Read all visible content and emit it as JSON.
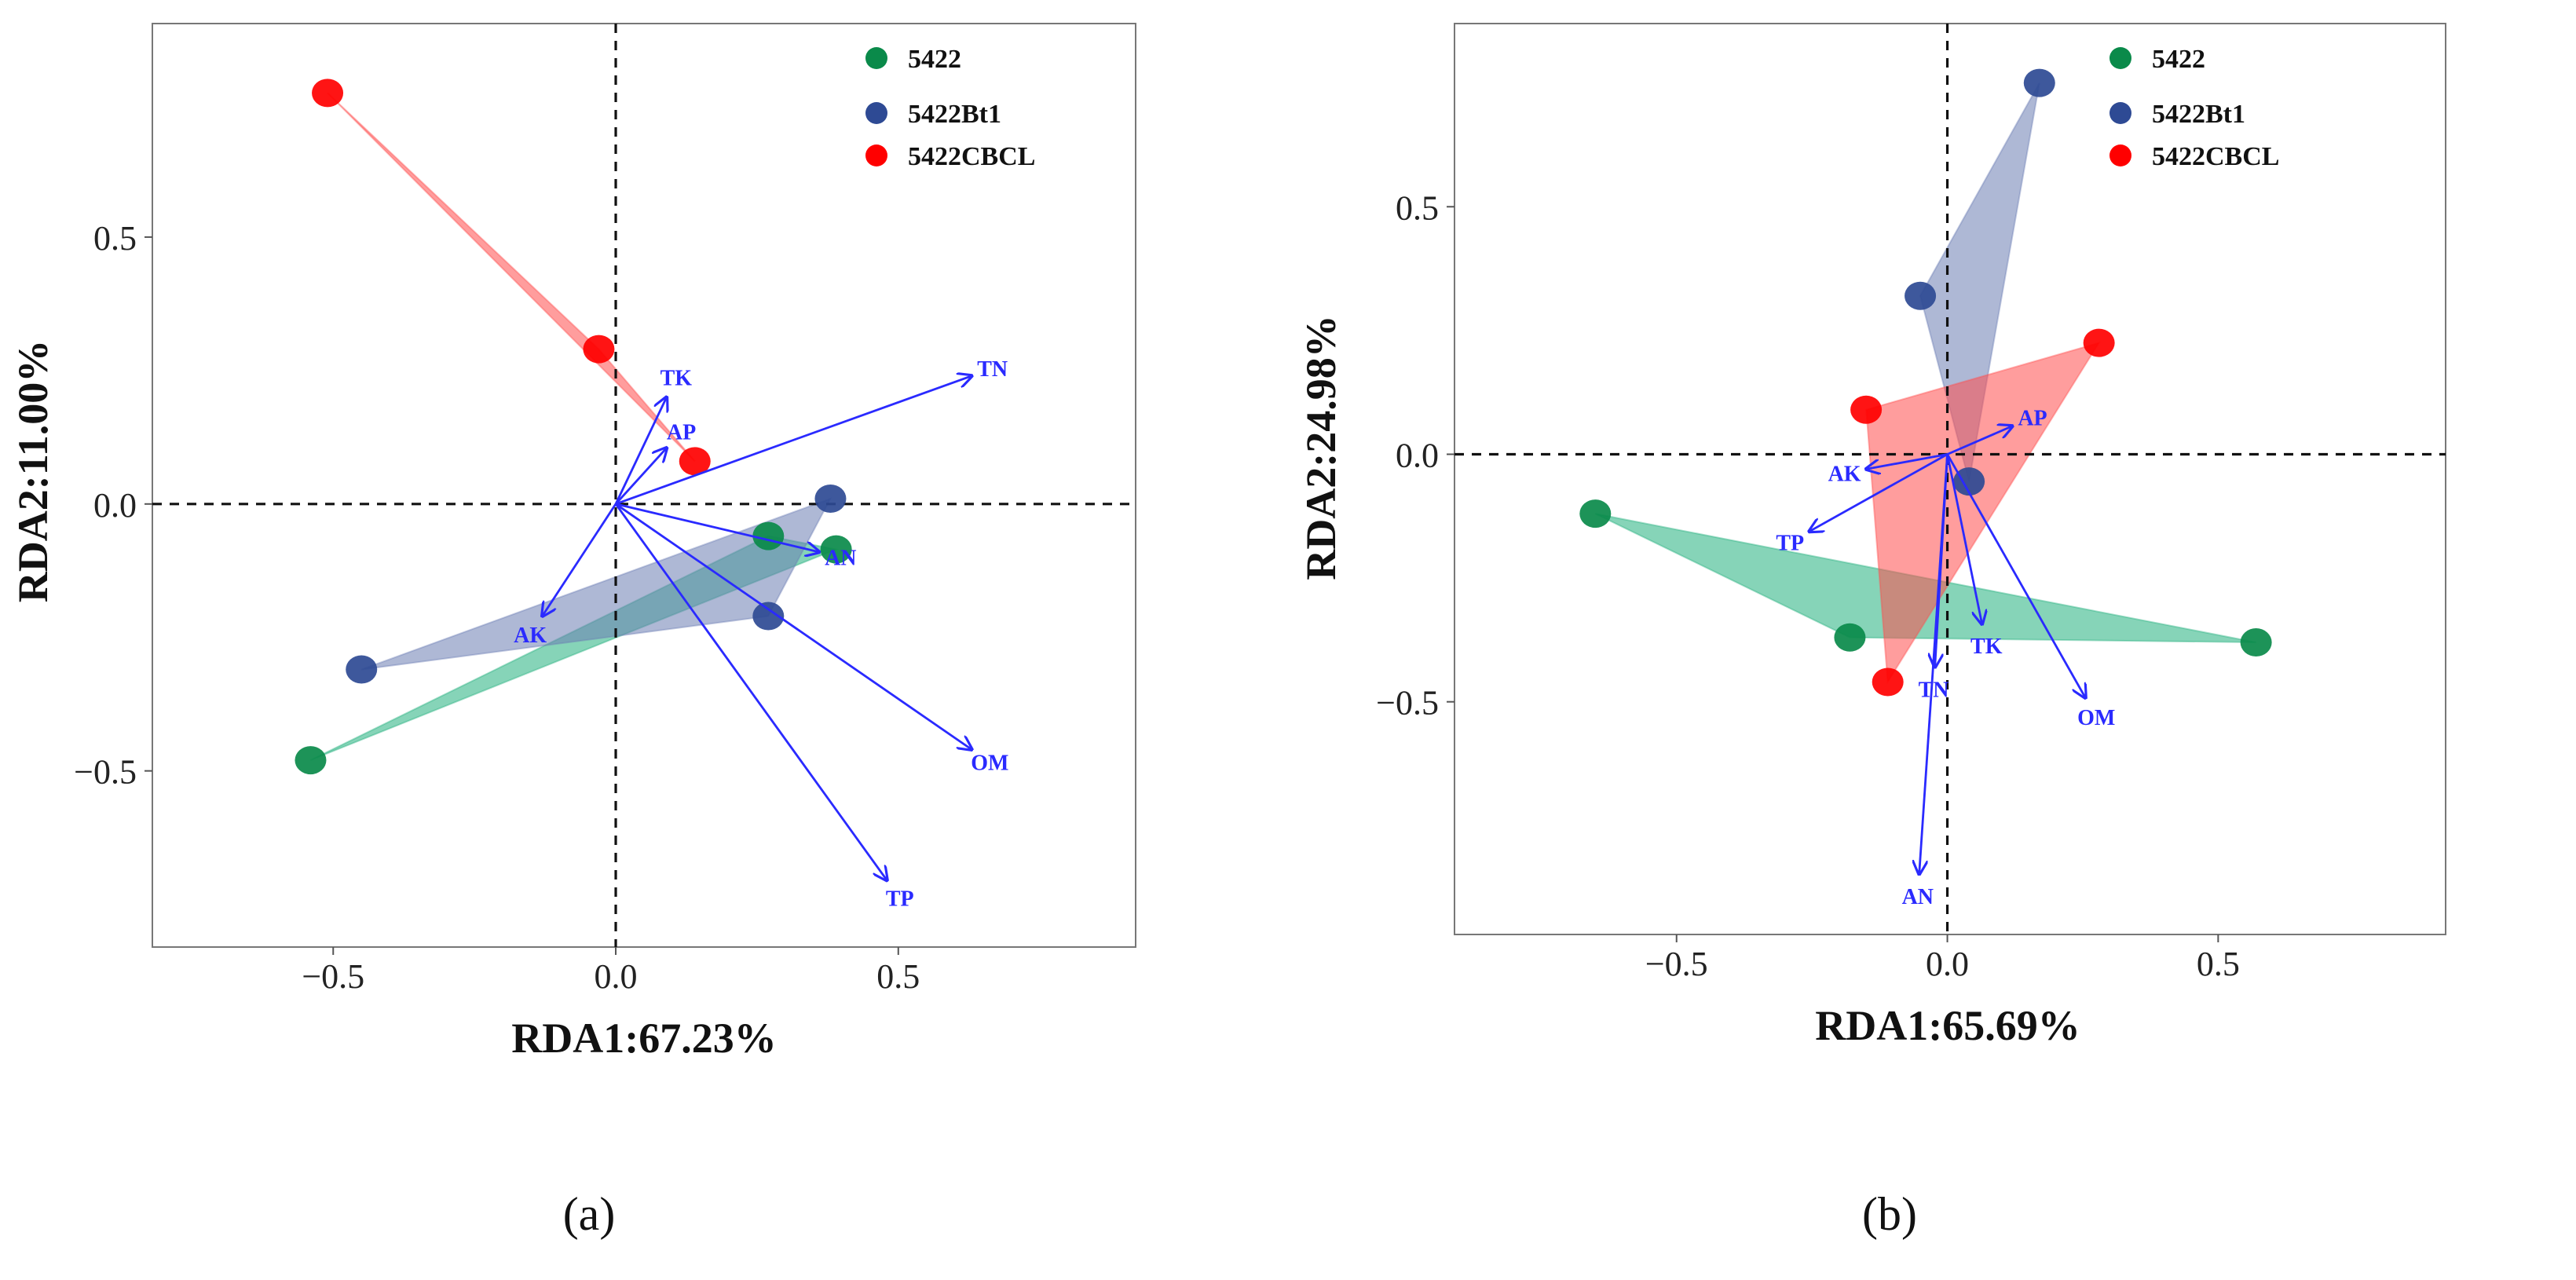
{
  "colors": {
    "5422": "#0a8a4a",
    "5422Bt1": "#2e4a94",
    "5422CBCL": "#ff0000",
    "arrow": "#2a2aff",
    "fill_5422": "#22b07d",
    "fill_5422Bt1": "#6b7db3",
    "fill_5422CBCL": "#ff4d4d"
  },
  "chart_data": [
    {
      "type": "scatter",
      "panel_label": "(a)",
      "xlabel": "RDA1:67.23%",
      "ylabel": "RDA2:11.00%",
      "xlim": [
        -0.82,
        0.92
      ],
      "ylim": [
        -0.83,
        0.9
      ],
      "xticks": [
        -0.5,
        0.0,
        0.5
      ],
      "xtick_labels": [
        "−0.5",
        "0.0",
        "0.5"
      ],
      "yticks": [
        0.5,
        0.0,
        -0.5
      ],
      "ytick_labels": [
        "0.5",
        "0.0",
        "−0.5"
      ],
      "legend": [
        "5422",
        "5422Bt1",
        "5422CBCL"
      ],
      "legend_position": "top-right",
      "series": [
        {
          "name": "5422",
          "points": [
            [
              -0.54,
              -0.48
            ],
            [
              0.27,
              -0.06
            ],
            [
              0.39,
              -0.085
            ]
          ]
        },
        {
          "name": "5422Bt1",
          "points": [
            [
              -0.45,
              -0.31
            ],
            [
              0.38,
              0.01
            ],
            [
              0.27,
              -0.21
            ]
          ]
        },
        {
          "name": "5422CBCL",
          "points": [
            [
              -0.51,
              0.77
            ],
            [
              -0.03,
              0.29
            ],
            [
              0.14,
              0.08
            ]
          ]
        }
      ],
      "arrows": [
        {
          "label": "TK",
          "x": 0.09,
          "y": 0.2
        },
        {
          "label": "AP",
          "x": 0.09,
          "y": 0.105
        },
        {
          "label": "TN",
          "x": 0.63,
          "y": 0.24
        },
        {
          "label": "AN",
          "x": 0.36,
          "y": -0.09
        },
        {
          "label": "OM",
          "x": 0.63,
          "y": -0.46
        },
        {
          "label": "TP",
          "x": 0.48,
          "y": -0.705
        },
        {
          "label": "AK",
          "x": -0.13,
          "y": -0.21
        }
      ]
    },
    {
      "type": "scatter",
      "panel_label": "(b)",
      "xlabel": "RDA1:65.69%",
      "ylabel": "RDA2:24.98%",
      "xlim": [
        -0.91,
        0.92
      ],
      "ylim": [
        -0.97,
        0.87
      ],
      "xticks": [
        -0.5,
        0.0,
        0.5
      ],
      "xtick_labels": [
        "−0.5",
        "0.0",
        "0.5"
      ],
      "yticks": [
        0.5,
        0.0,
        -0.5
      ],
      "ytick_labels": [
        "0.5",
        "0.0",
        "−0.5"
      ],
      "legend": [
        "5422",
        "5422Bt1",
        "5422CBCL"
      ],
      "legend_position": "top-right",
      "series": [
        {
          "name": "5422",
          "points": [
            [
              -0.65,
              -0.12
            ],
            [
              -0.18,
              -0.37
            ],
            [
              0.57,
              -0.38
            ]
          ]
        },
        {
          "name": "5422Bt1",
          "points": [
            [
              0.17,
              0.75
            ],
            [
              -0.05,
              0.32
            ],
            [
              0.04,
              -0.055
            ]
          ]
        },
        {
          "name": "5422CBCL",
          "points": [
            [
              0.28,
              0.225
            ],
            [
              -0.15,
              0.09
            ],
            [
              -0.11,
              -0.46
            ]
          ]
        }
      ],
      "arrows": [
        {
          "label": "AP",
          "x": 0.12,
          "y": 0.057
        },
        {
          "label": "AK",
          "x": -0.15,
          "y": -0.03
        },
        {
          "label": "TP",
          "x": -0.255,
          "y": -0.156
        },
        {
          "label": "TK",
          "x": 0.064,
          "y": -0.343
        },
        {
          "label": "TN",
          "x": -0.023,
          "y": -0.43
        },
        {
          "label": "AN",
          "x": -0.052,
          "y": -0.848
        },
        {
          "label": "OM",
          "x": 0.255,
          "y": -0.492
        }
      ]
    }
  ]
}
